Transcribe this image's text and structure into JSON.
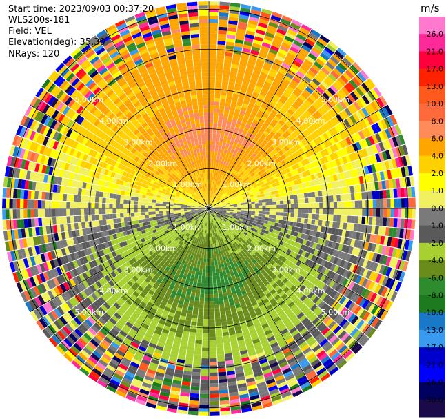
{
  "header": {
    "start_time": "Start time: 2023/09/03 00:37:20",
    "instrument": "WLS200s-181",
    "field": "Field: VEL",
    "elevation": "Elevation(deg): 35.30",
    "nrays": "NRays: 120"
  },
  "chart_data": {
    "type": "heatmap",
    "projection": "polar-ppi",
    "grid": true,
    "range_rings": [
      "1.00km",
      "2.00km",
      "3.00km",
      "4.00km",
      "5.00km"
    ],
    "range_ring_values_km": [
      1,
      2,
      3,
      4,
      5
    ],
    "max_range_km": 5.2,
    "n_rays": 120,
    "colorbar": {
      "unit": "m/s",
      "tick_labels": [
        "26.0",
        "21.0",
        "17.0",
        "13.0",
        "10.0",
        "8.0",
        "6.0",
        "4.0",
        "2.0",
        "1.0",
        "0.0",
        "-1.0",
        "-2.0",
        "-4.0",
        "-6.0",
        "-8.0",
        "-10.0",
        "-13.0",
        "-17.0",
        "-21.0",
        "-26.0",
        "-30.0"
      ],
      "colors": [
        "#ff79cf",
        "#ff2a9a",
        "#ff003c",
        "#ff2200",
        "#ff5a1e",
        "#ff6a3c",
        "#ff8a5a",
        "#ffa500",
        "#ffd000",
        "#ffff00",
        "#f0f060",
        "#7a7a7a",
        "#5a5a5a",
        "#a8d030",
        "#6a8c1a",
        "#2e8b2e",
        "#1e7a1e",
        "#1a78c8",
        "#3a9aee",
        "#0000cc",
        "#0000ff",
        "#000060",
        "#1a0a4a"
      ]
    },
    "velocity_pattern": {
      "positive_toward": "north",
      "negative_toward": "south",
      "zero_axis": "east-west"
    }
  }
}
